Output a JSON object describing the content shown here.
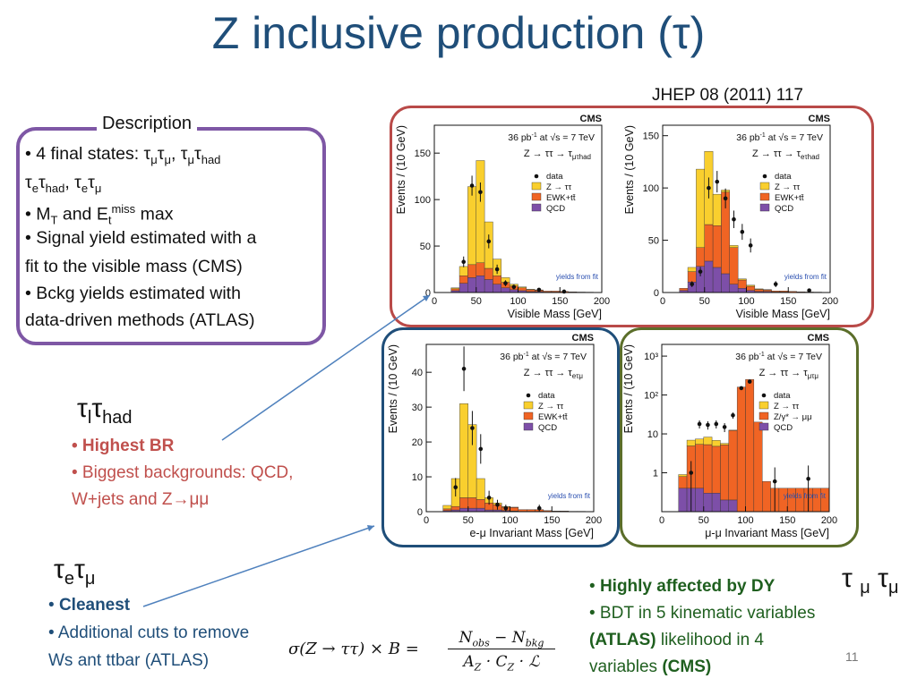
{
  "title": "Z inclusive production (τ)",
  "journal_ref": "JHEP 08 (2011) 117",
  "description": {
    "heading": "Description",
    "line1_pre": "• 4 final states: τ",
    "line1_a": "μ",
    "line1_b": "τ",
    "line1_c": "μ",
    "line1_d": ", τ",
    "line1_e": "μ",
    "line1_f": "τ",
    "line1_g": "had",
    "line2_a": "τ",
    "line2_b": "e",
    "line2_c": "τ",
    "line2_d": "had",
    "line2_e": ", τ",
    "line2_f": "e",
    "line2_g": "τ",
    "line2_h": "μ",
    "line3_a": "• M",
    "line3_b": "T",
    "line3_c": " and E",
    "line3_d": "t",
    "line3_e": "miss",
    "line3_f": "  max",
    "line4": "• Signal yield estimated  with a",
    "line5": "fit to the visible mass (CMS)",
    "line6": "• Bckg yields estimated with",
    "line7": "data-driven methods (ATLAS)"
  },
  "lthad": {
    "t1": "τ",
    "t2": "l",
    "t3": "τ",
    "t4": "had",
    "b1": "• Highest BR",
    "b2": "• Biggest backgrounds: QCD,",
    "b3_a": "W+jets and Z",
    "b3_arrow": "→",
    "b3_b": "μμ"
  },
  "etmu": {
    "t1": "τ",
    "t2": "e",
    "t3": "τ",
    "t4": "μ",
    "b1_bullet": "• ",
    "b1": "Cleanest",
    "b2": "• Additional cuts to remove",
    "b3": "Ws ant ttbar (ATLAS)"
  },
  "mumu": {
    "t1": "τ",
    "t2": "μ",
    "t3": "τ",
    "t4": "μ",
    "b1_bullet": "• ",
    "b1": "Highly affected by DY",
    "b2": "• BDT in 5 kinematic variables",
    "b3_a": "(ATLAS)",
    "b3_b": " likelihood in 4",
    "b4_a": "variables  ",
    "b4_b": "(CMS)"
  },
  "formula": {
    "lhs": "σ(Z → ττ) × B =",
    "num": "N",
    "num_sub": "obs",
    "minus": " − N",
    "num_sub2": "bkg",
    "den": "A",
    "den_sub": "Z",
    "dot": " · C",
    "den_sub2": "Z",
    "dot2": " · ℒ"
  },
  "page_number": "11",
  "colors": {
    "ztautau": "#f9cf2e",
    "ewk": "#f06424",
    "qcd": "#7d4fa8",
    "red_box": "#b94a48",
    "blue_box": "#1f4e79",
    "green_box": "#5b6e2a"
  },
  "chart_data": [
    {
      "type": "bar",
      "cms": "CMS",
      "lumi": "36 pb",
      "lumi_sup": "-1",
      "energy": " at √s = 7 TeV",
      "process": "Z → ττ → τ",
      "process_sub": "μτhad",
      "xlabel": "Visible Mass  [GeV]",
      "ylabel": "Events / (10 GeV)",
      "note": "yields from fit",
      "xlim": [
        0,
        200
      ],
      "ylim": [
        0,
        180
      ],
      "yticks": [
        0,
        50,
        100,
        150
      ],
      "xticks": [
        0,
        50,
        100,
        150,
        200
      ],
      "log": false,
      "legend": [
        "data",
        "Z → ττ",
        "EWK+tt̄",
        "QCD"
      ],
      "bin_edges": [
        20,
        30,
        40,
        50,
        60,
        70,
        80,
        90,
        100,
        110,
        120,
        130,
        140,
        150,
        160,
        170,
        180,
        190,
        200
      ],
      "qcd": [
        2,
        10,
        16,
        18,
        14,
        9,
        5,
        3,
        2,
        1,
        1,
        0.5,
        0.5,
        0.3,
        0.2,
        0.1,
        0.1,
        0
      ],
      "ewk": [
        2,
        8,
        14,
        14,
        12,
        9,
        6,
        4,
        3,
        2,
        1.5,
        1,
        1,
        0.8,
        0.5,
        0.4,
        0.3,
        0.2
      ],
      "ztt": [
        1,
        10,
        84,
        110,
        50,
        18,
        5,
        2,
        1,
        0.5,
        0.3,
        0.2,
        0.1,
        0.1,
        0,
        0,
        0,
        0
      ],
      "data_x": [
        35,
        45,
        55,
        65,
        75,
        85,
        95,
        125,
        155
      ],
      "data_y": [
        33,
        115,
        108,
        55,
        25,
        10,
        6,
        3,
        1
      ]
    },
    {
      "type": "bar",
      "cms": "CMS",
      "lumi": "36 pb",
      "lumi_sup": "-1",
      "energy": " at √s = 7 TeV",
      "process": "Z → ττ → τ",
      "process_sub": "eτhad",
      "xlabel": "Visible Mass  [GeV]",
      "ylabel": "Events / (10 GeV)",
      "note": "yields from fit",
      "xlim": [
        0,
        200
      ],
      "ylim": [
        0,
        160
      ],
      "yticks": [
        0,
        50,
        100,
        150
      ],
      "xticks": [
        0,
        50,
        100,
        150,
        200
      ],
      "log": false,
      "legend": [
        "data",
        "Z → ττ",
        "EWK+tt̄",
        "QCD"
      ],
      "bin_edges": [
        20,
        30,
        40,
        50,
        60,
        70,
        80,
        90,
        100,
        110,
        120,
        130,
        140,
        150,
        160,
        170,
        180,
        190,
        200
      ],
      "qcd": [
        2,
        10,
        25,
        30,
        24,
        18,
        8,
        4,
        2,
        1,
        1,
        0.5,
        0.5,
        0.3,
        0.2,
        0.1,
        0.1,
        0
      ],
      "ewk": [
        2,
        10,
        18,
        35,
        40,
        78,
        35,
        8,
        4,
        2,
        1.5,
        1,
        1,
        0.8,
        0.5,
        0.4,
        0.3,
        0.2
      ],
      "ztt": [
        0,
        4,
        75,
        70,
        30,
        2,
        2,
        1,
        1,
        0.5,
        0.3,
        0.2,
        0.1,
        0.1,
        0,
        0,
        0,
        0
      ],
      "data_x": [
        35,
        45,
        55,
        65,
        75,
        85,
        95,
        105,
        135,
        175
      ],
      "data_y": [
        8,
        20,
        100,
        106,
        90,
        70,
        58,
        45,
        8,
        2
      ]
    },
    {
      "type": "bar",
      "cms": "CMS",
      "lumi": "36 pb",
      "lumi_sup": "-1",
      "energy": " at √s = 7 TeV",
      "process": "Z → ττ → τ",
      "process_sub": "eτμ",
      "xlabel": "e-μ Invariant Mass  [GeV]",
      "ylabel": "Events / (10 GeV)",
      "note": "yields from fit",
      "xlim": [
        0,
        200
      ],
      "ylim": [
        0,
        48
      ],
      "yticks": [
        0,
        10,
        20,
        30,
        40
      ],
      "xticks": [
        0,
        50,
        100,
        150,
        200
      ],
      "log": false,
      "legend": [
        "data",
        "Z → ττ",
        "EWK+tt̄",
        "QCD"
      ],
      "bin_edges": [
        20,
        30,
        40,
        50,
        60,
        70,
        80,
        90,
        100,
        110,
        120,
        130,
        140,
        150,
        160,
        170,
        180,
        190,
        200
      ],
      "qcd": [
        0.3,
        0.5,
        1,
        1,
        1,
        0.5,
        0.5,
        0.3,
        0.2,
        0.1,
        0.1,
        0.1,
        0,
        0,
        0,
        0,
        0,
        0
      ],
      "ewk": [
        0.5,
        1,
        3,
        3,
        2.5,
        2,
        1.5,
        1,
        1,
        0.5,
        0.5,
        0.5,
        0.3,
        0.2,
        0.2,
        0.1,
        0.1,
        0
      ],
      "ztt": [
        1,
        8,
        27,
        21,
        6,
        1.5,
        0.5,
        0.2,
        0.1,
        0,
        0,
        0,
        0,
        0,
        0,
        0,
        0,
        0
      ],
      "data_x": [
        35,
        45,
        55,
        65,
        75,
        85,
        95,
        135
      ],
      "data_y": [
        7,
        41,
        24,
        18,
        4,
        2,
        1,
        1
      ]
    },
    {
      "type": "bar",
      "cms": "CMS",
      "lumi": "36 pb",
      "lumi_sup": "-1",
      "energy": " at √s = 7 TeV",
      "process": "Z → ττ → τ",
      "process_sub": "μτμ",
      "xlabel": "μ-μ Invariant Mass  [GeV]",
      "ylabel": "Events / (10 GeV)",
      "note": "yields from fit",
      "xlim": [
        0,
        200
      ],
      "ylim": [
        0.1,
        2000
      ],
      "yticks": [
        1,
        10,
        100,
        1000
      ],
      "ytick_labels": [
        "1",
        "10",
        "10²",
        "10³"
      ],
      "xticks": [
        0,
        50,
        100,
        150,
        200
      ],
      "log": true,
      "legend": [
        "data",
        "Z → ττ",
        "Z/γ* → μμ",
        "QCD"
      ],
      "bin_edges": [
        20,
        30,
        40,
        50,
        60,
        70,
        80,
        90,
        100,
        110,
        120,
        130,
        140,
        150,
        160,
        170,
        180,
        190,
        200
      ],
      "qcd": [
        0.3,
        0.3,
        0.3,
        0.2,
        0.2,
        0.1,
        0.1,
        0,
        0,
        0,
        0,
        0,
        0,
        0,
        0,
        0,
        0,
        0
      ],
      "ewk": [
        0.4,
        4.5,
        5,
        5,
        4.5,
        5,
        12,
        160,
        250,
        20,
        0.5,
        0.3,
        0.3,
        0.3,
        0.3,
        0.3,
        0.3,
        0.3
      ],
      "ztt": [
        0.1,
        2,
        2,
        3,
        2,
        0.5,
        0.3,
        0,
        0,
        0,
        0,
        0,
        0,
        0,
        0,
        0,
        0,
        0
      ],
      "data_x": [
        35,
        45,
        55,
        65,
        75,
        85,
        95,
        105,
        135,
        175
      ],
      "data_y": [
        1,
        18,
        17,
        18,
        15,
        30,
        150,
        220,
        0.6,
        0.7
      ]
    }
  ]
}
